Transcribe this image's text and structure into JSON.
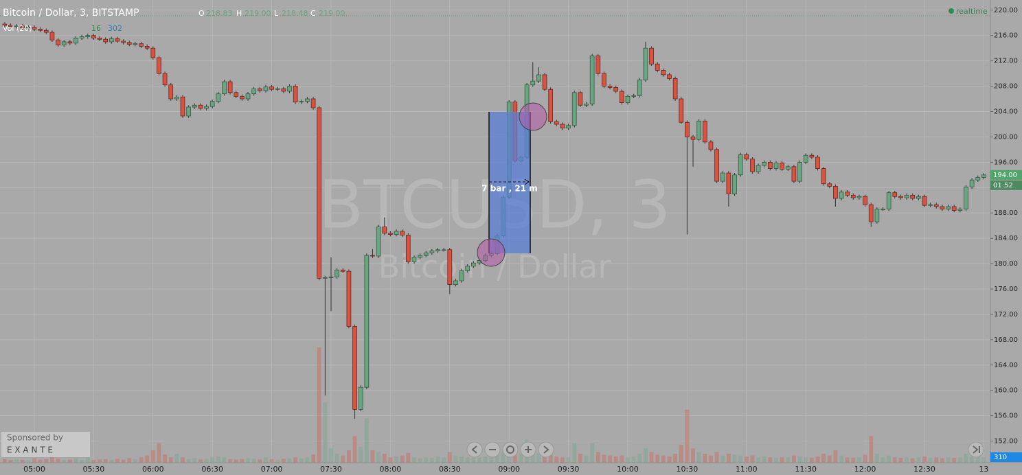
{
  "chart_data": {
    "type": "candlestick",
    "name": "BTCUSD",
    "x": [
      "04:45",
      "04:48",
      "04:51",
      "04:54",
      "04:57",
      "05:00",
      "05:03",
      "05:06",
      "05:09",
      "05:12",
      "05:15",
      "05:18",
      "05:21",
      "05:24",
      "05:27",
      "05:30",
      "05:33",
      "05:36",
      "05:39",
      "05:42",
      "05:45",
      "05:48",
      "05:51",
      "05:54",
      "05:57",
      "06:00",
      "06:03",
      "06:06",
      "06:09",
      "06:12",
      "06:15",
      "06:18",
      "06:21",
      "06:24",
      "06:27",
      "06:30",
      "06:33",
      "06:36",
      "06:39",
      "06:42",
      "06:45",
      "06:48",
      "06:51",
      "06:54",
      "06:57",
      "07:00",
      "07:03",
      "07:06",
      "07:09",
      "07:12",
      "07:15",
      "07:18",
      "07:21",
      "07:24",
      "07:27",
      "07:30",
      "07:33",
      "07:36",
      "07:39",
      "07:42",
      "07:45",
      "07:48",
      "07:51",
      "07:54",
      "07:57",
      "08:00",
      "08:03",
      "08:06",
      "08:09",
      "08:12",
      "08:15",
      "08:18",
      "08:21",
      "08:24",
      "08:27",
      "08:30",
      "08:33",
      "08:36",
      "08:39",
      "08:42",
      "08:45",
      "08:48",
      "08:51",
      "08:54",
      "08:57",
      "09:00",
      "09:03",
      "09:06",
      "09:09",
      "09:12",
      "09:15",
      "09:18",
      "09:21",
      "09:24",
      "09:27",
      "09:30",
      "09:33",
      "09:36",
      "09:39",
      "09:42",
      "09:45",
      "09:48",
      "09:51",
      "09:54",
      "09:57",
      "10:00",
      "10:03",
      "10:06",
      "10:09",
      "10:12",
      "10:15",
      "10:18",
      "10:21",
      "10:24",
      "10:27",
      "10:30",
      "10:33",
      "10:36",
      "10:39",
      "10:42",
      "10:45",
      "10:48",
      "10:51",
      "10:54",
      "10:57",
      "11:00",
      "11:03",
      "11:06",
      "11:09",
      "11:12",
      "11:15",
      "11:18",
      "11:21",
      "11:24",
      "11:27",
      "11:30",
      "11:33",
      "11:36",
      "11:39",
      "11:42",
      "11:45",
      "11:48",
      "11:51",
      "11:54",
      "11:57",
      "12:00",
      "12:03",
      "12:06",
      "12:09",
      "12:12",
      "12:15",
      "12:18",
      "12:21",
      "12:24",
      "12:27",
      "12:30",
      "12:33",
      "12:36",
      "12:39",
      "12:42",
      "12:45",
      "12:48",
      "12:51",
      "12:54",
      "12:57",
      "13:00"
    ],
    "open": [
      217.8,
      217.6,
      217.4,
      217.5,
      217.2,
      217.3,
      217.0,
      216.8,
      216.5,
      215.3,
      214.5,
      215.0,
      214.8,
      215.6,
      215.8,
      216.0,
      215.6,
      215.4,
      215.0,
      215.5,
      215.1,
      214.9,
      214.6,
      214.7,
      214.3,
      214.0,
      212.5,
      210.0,
      208.2,
      206.0,
      206.3,
      203.3,
      204.7,
      205.0,
      204.5,
      204.8,
      205.6,
      206.8,
      208.7,
      207.0,
      206.4,
      206.0,
      206.8,
      207.6,
      207.3,
      207.9,
      207.5,
      207.6,
      207.2,
      208.0,
      205.5,
      205.6,
      206.0,
      204.6,
      177.7,
      177.8,
      177.9,
      179.0,
      178.8,
      170.1,
      157.0,
      160.5,
      181.3,
      181.2,
      185.8,
      184.8,
      184.6,
      185.1,
      184.5,
      180.3,
      181.0,
      181.3,
      181.7,
      182.0,
      182.2,
      182.2,
      176.7,
      177.3,
      178.9,
      179.6,
      180.1,
      180.5,
      181.3,
      181.6,
      184.4,
      190.5,
      205.5,
      196.2,
      196.8,
      208.2,
      208.8,
      209.8,
      207.5,
      202.4,
      202.0,
      201.4,
      201.8,
      207.0,
      205.0,
      205.2,
      212.8,
      210.0,
      208.0,
      207.8,
      207.2,
      205.4,
      206.4,
      206.5,
      209.0,
      214.0,
      211.5,
      210.5,
      209.8,
      209.2,
      206.0,
      202.3,
      200.0,
      199.6,
      202.5,
      199.2,
      198.0,
      193.0,
      194.3,
      191.0,
      194.0,
      197.2,
      196.5,
      194.5,
      195.5,
      196.0,
      195.0,
      195.9,
      194.9,
      195.3,
      193.0,
      196.0,
      197.1,
      196.8,
      195.0,
      192.6,
      192.2,
      190.3,
      191.3,
      190.8,
      190.4,
      190.6,
      189.3,
      186.6,
      188.6,
      188.6,
      191.2,
      190.6,
      190.4,
      190.8,
      190.3,
      190.6,
      189.2,
      189.3,
      189.0,
      188.6,
      189.0,
      188.4,
      188.6,
      192.1,
      193.2,
      193.6
    ],
    "high": [
      218.1,
      217.9,
      217.8,
      217.8,
      217.6,
      217.6,
      217.3,
      217.1,
      216.8,
      215.6,
      215.3,
      215.3,
      215.9,
      216.1,
      216.3,
      216.3,
      215.9,
      215.7,
      215.8,
      215.8,
      215.4,
      215.2,
      215.0,
      215.0,
      214.6,
      214.3,
      212.8,
      210.3,
      208.5,
      206.6,
      206.6,
      205.0,
      205.3,
      205.3,
      205.1,
      205.9,
      207.1,
      209.0,
      209.0,
      207.3,
      206.7,
      207.1,
      207.9,
      207.9,
      208.2,
      208.2,
      207.9,
      207.9,
      208.3,
      208.3,
      205.9,
      206.3,
      206.3,
      204.9,
      178.1,
      181.0,
      179.3,
      179.3,
      179.1,
      170.4,
      160.8,
      181.6,
      182.3,
      186.1,
      187.3,
      185.1,
      185.4,
      185.4,
      184.8,
      181.3,
      181.6,
      182.0,
      182.3,
      182.5,
      182.5,
      182.5,
      177.6,
      179.2,
      179.9,
      180.4,
      180.8,
      181.6,
      181.9,
      184.7,
      190.8,
      205.8,
      205.8,
      197.1,
      208.5,
      211.8,
      211.0,
      210.1,
      207.8,
      202.7,
      202.3,
      202.1,
      207.3,
      207.3,
      205.5,
      213.1,
      213.1,
      210.3,
      208.3,
      208.1,
      207.5,
      206.7,
      206.8,
      209.3,
      215.0,
      214.3,
      211.8,
      210.8,
      210.1,
      209.5,
      206.3,
      202.6,
      200.3,
      202.8,
      202.8,
      199.5,
      198.3,
      194.6,
      194.6,
      194.3,
      197.5,
      197.5,
      196.8,
      195.8,
      196.3,
      196.3,
      196.2,
      196.2,
      195.6,
      195.6,
      196.3,
      197.4,
      197.4,
      197.1,
      195.3,
      192.9,
      192.5,
      191.6,
      191.6,
      191.1,
      190.9,
      190.9,
      189.6,
      188.9,
      188.9,
      191.5,
      191.5,
      190.9,
      191.1,
      191.1,
      190.9,
      190.9,
      189.6,
      189.6,
      189.3,
      189.3,
      189.3,
      188.9,
      192.4,
      193.5,
      193.9,
      194.3
    ],
    "low": [
      217.3,
      217.1,
      217.1,
      216.9,
      216.9,
      216.7,
      216.5,
      216.2,
      215.0,
      214.2,
      214.2,
      214.5,
      214.5,
      215.3,
      215.5,
      215.3,
      215.1,
      214.7,
      214.7,
      214.8,
      214.6,
      214.3,
      214.3,
      214.0,
      213.7,
      212.2,
      209.7,
      207.9,
      205.7,
      205.7,
      203.0,
      203.0,
      204.4,
      204.2,
      204.2,
      204.5,
      205.3,
      206.5,
      206.7,
      206.1,
      205.7,
      205.7,
      206.5,
      207.0,
      207.0,
      207.2,
      207.2,
      206.9,
      206.9,
      205.2,
      205.2,
      205.3,
      204.3,
      177.4,
      159.2,
      172.5,
      177.6,
      178.5,
      169.8,
      155.5,
      156.7,
      160.2,
      180.9,
      180.9,
      184.5,
      184.3,
      184.3,
      184.2,
      180.0,
      180.0,
      180.7,
      181.0,
      181.4,
      181.7,
      181.9,
      175.2,
      176.4,
      177.0,
      178.6,
      179.3,
      179.8,
      180.2,
      181.0,
      181.3,
      184.1,
      190.2,
      195.9,
      195.9,
      196.5,
      207.9,
      208.5,
      207.2,
      202.1,
      201.7,
      201.1,
      201.1,
      201.5,
      204.7,
      204.7,
      204.9,
      209.7,
      207.7,
      207.5,
      206.9,
      205.1,
      205.1,
      206.1,
      206.2,
      208.7,
      211.2,
      210.2,
      209.5,
      208.9,
      205.7,
      202.0,
      184.6,
      195.3,
      199.3,
      198.9,
      197.7,
      192.7,
      192.7,
      189.0,
      190.7,
      193.7,
      196.2,
      194.2,
      194.2,
      195.2,
      194.7,
      194.7,
      194.6,
      194.6,
      192.7,
      192.7,
      195.7,
      196.5,
      194.7,
      192.3,
      191.9,
      189.0,
      190.0,
      190.5,
      190.1,
      190.1,
      189.0,
      185.8,
      186.3,
      188.3,
      188.3,
      190.3,
      190.1,
      190.1,
      190.0,
      190.0,
      188.9,
      188.9,
      188.7,
      188.3,
      188.3,
      188.1,
      188.1,
      188.3,
      191.8,
      192.9,
      193.3
    ],
    "close": [
      217.6,
      217.4,
      217.5,
      217.2,
      217.3,
      217.0,
      216.8,
      216.5,
      215.3,
      214.5,
      215.0,
      214.8,
      215.6,
      215.8,
      216.0,
      215.6,
      215.4,
      215.0,
      215.5,
      215.1,
      214.9,
      214.6,
      214.7,
      214.3,
      214.0,
      212.5,
      210.0,
      208.2,
      206.0,
      206.3,
      203.3,
      204.7,
      205.0,
      204.5,
      204.8,
      205.6,
      206.8,
      208.7,
      207.0,
      206.4,
      206.0,
      206.8,
      207.6,
      207.3,
      207.9,
      207.5,
      207.6,
      207.2,
      208.0,
      205.5,
      205.6,
      206.0,
      204.6,
      177.7,
      177.8,
      177.9,
      179.0,
      178.8,
      170.1,
      157.0,
      160.5,
      181.3,
      181.2,
      185.8,
      184.8,
      184.6,
      185.1,
      184.5,
      180.3,
      181.0,
      181.3,
      181.7,
      182.0,
      182.2,
      182.2,
      176.7,
      177.3,
      178.9,
      179.6,
      180.1,
      180.5,
      181.3,
      181.6,
      184.4,
      190.5,
      205.5,
      196.2,
      196.8,
      208.2,
      208.8,
      209.8,
      207.5,
      202.4,
      202.0,
      201.4,
      201.8,
      207.0,
      205.0,
      205.2,
      212.8,
      210.0,
      208.0,
      207.8,
      207.2,
      205.4,
      206.4,
      206.5,
      209.0,
      214.0,
      211.5,
      210.5,
      209.8,
      209.2,
      206.0,
      202.3,
      200.0,
      199.6,
      202.5,
      199.2,
      198.0,
      193.0,
      194.3,
      191.0,
      194.0,
      197.2,
      196.5,
      194.5,
      195.5,
      196.0,
      195.0,
      195.9,
      194.9,
      195.3,
      193.0,
      196.0,
      197.1,
      196.8,
      195.0,
      192.6,
      192.2,
      190.3,
      191.3,
      190.8,
      190.4,
      190.6,
      189.3,
      186.6,
      188.6,
      188.6,
      191.2,
      190.6,
      190.4,
      190.8,
      190.3,
      190.6,
      189.2,
      189.3,
      189.0,
      188.6,
      189.0,
      188.4,
      188.6,
      192.1,
      193.2,
      193.6,
      194.0
    ],
    "volume": [
      200,
      150,
      180,
      160,
      140,
      250,
      170,
      200,
      300,
      220,
      160,
      180,
      250,
      150,
      300,
      160,
      180,
      200,
      150,
      220,
      170,
      260,
      200,
      300,
      400,
      700,
      1100,
      450,
      300,
      500,
      300,
      200,
      250,
      180,
      220,
      300,
      350,
      300,
      200,
      180,
      200,
      250,
      220,
      180,
      300,
      200,
      160,
      220,
      250,
      300,
      250,
      300,
      450,
      6500,
      3400,
      800,
      500,
      400,
      700,
      1500,
      900,
      2500,
      700,
      600,
      500,
      300,
      350,
      400,
      550,
      300,
      250,
      300,
      280,
      350,
      300,
      600,
      400,
      350,
      300,
      280,
      300,
      350,
      400,
      500,
      600,
      800,
      700,
      500,
      1300,
      600,
      500,
      400,
      600,
      350,
      300,
      300,
      1100,
      500,
      400,
      1100,
      600,
      450,
      400,
      350,
      400,
      300,
      350,
      500,
      800,
      600,
      450,
      400,
      350,
      500,
      1000,
      3000,
      800,
      600,
      500,
      400,
      600,
      400,
      500,
      450,
      400,
      350,
      400,
      300,
      350,
      300,
      280,
      300,
      320,
      400,
      350,
      300,
      280,
      350,
      500,
      400,
      700,
      400,
      300,
      280,
      300,
      450,
      1500,
      500,
      300,
      400,
      300,
      280,
      300,
      250,
      300,
      350,
      280,
      300,
      250,
      300,
      280,
      300,
      500,
      350,
      300,
      310
    ],
    "volume_lim": [
      0,
      7750
    ],
    "up_color": "#6ba583",
    "down_color": "#d75442",
    "ylim": [
      148.6,
      221.6
    ],
    "yticks": [
      {
        "value": 152,
        "label": "152.00"
      },
      {
        "value": 156,
        "label": "156.00"
      },
      {
        "value": 160,
        "label": "160.00"
      },
      {
        "value": 164,
        "label": "164.00"
      },
      {
        "value": 168,
        "label": "168.00"
      },
      {
        "value": 172,
        "label": "172.00"
      },
      {
        "value": 176,
        "label": "176.00"
      },
      {
        "value": 180,
        "label": "180.00"
      },
      {
        "value": 184,
        "label": "184.00"
      },
      {
        "value": 188,
        "label": "188.00"
      },
      {
        "value": 192,
        "label": "192.00"
      },
      {
        "value": 196,
        "label": "196.00"
      },
      {
        "value": 200,
        "label": "200.00"
      },
      {
        "value": 204,
        "label": "204.00"
      },
      {
        "value": 208,
        "label": "208.00"
      },
      {
        "value": 212,
        "label": "212.00"
      },
      {
        "value": 216,
        "label": "216.00"
      },
      {
        "value": 220,
        "label": "220.00"
      }
    ],
    "xticks": [
      "05:00",
      "05:30",
      "06:00",
      "06:30",
      "07:00",
      "07:30",
      "08:00",
      "08:30",
      "09:00",
      "09:30",
      "10:00",
      "10:30",
      "11:00",
      "11:30",
      "12:00",
      "12:30",
      {
        "value": "13:00",
        "label": "13"
      }
    ],
    "grid": true
  },
  "header": {
    "symbol": "Bitcoin / Dollar, 3, BITSTAMP",
    "o_label": "O",
    "o": "218.83",
    "h_label": "H",
    "h": "219.00",
    "l_label": "L",
    "l": "218.48",
    "c_label": "C",
    "c": "219.00",
    "realtime": "realtime"
  },
  "volume_legend": {
    "name": "Vol (20)",
    "value": "16",
    "average": "302"
  },
  "tags": {
    "price": "194.00",
    "countdown": "01:52",
    "volume": "310"
  },
  "measure": {
    "text": "7 bar , 21 m"
  },
  "watermark": {
    "symbol": "BTCUSD, 3",
    "description": "Bitcoin / Dollar"
  },
  "sponsor": {
    "label": "Sponsored by",
    "brand": "E X A N T E"
  }
}
